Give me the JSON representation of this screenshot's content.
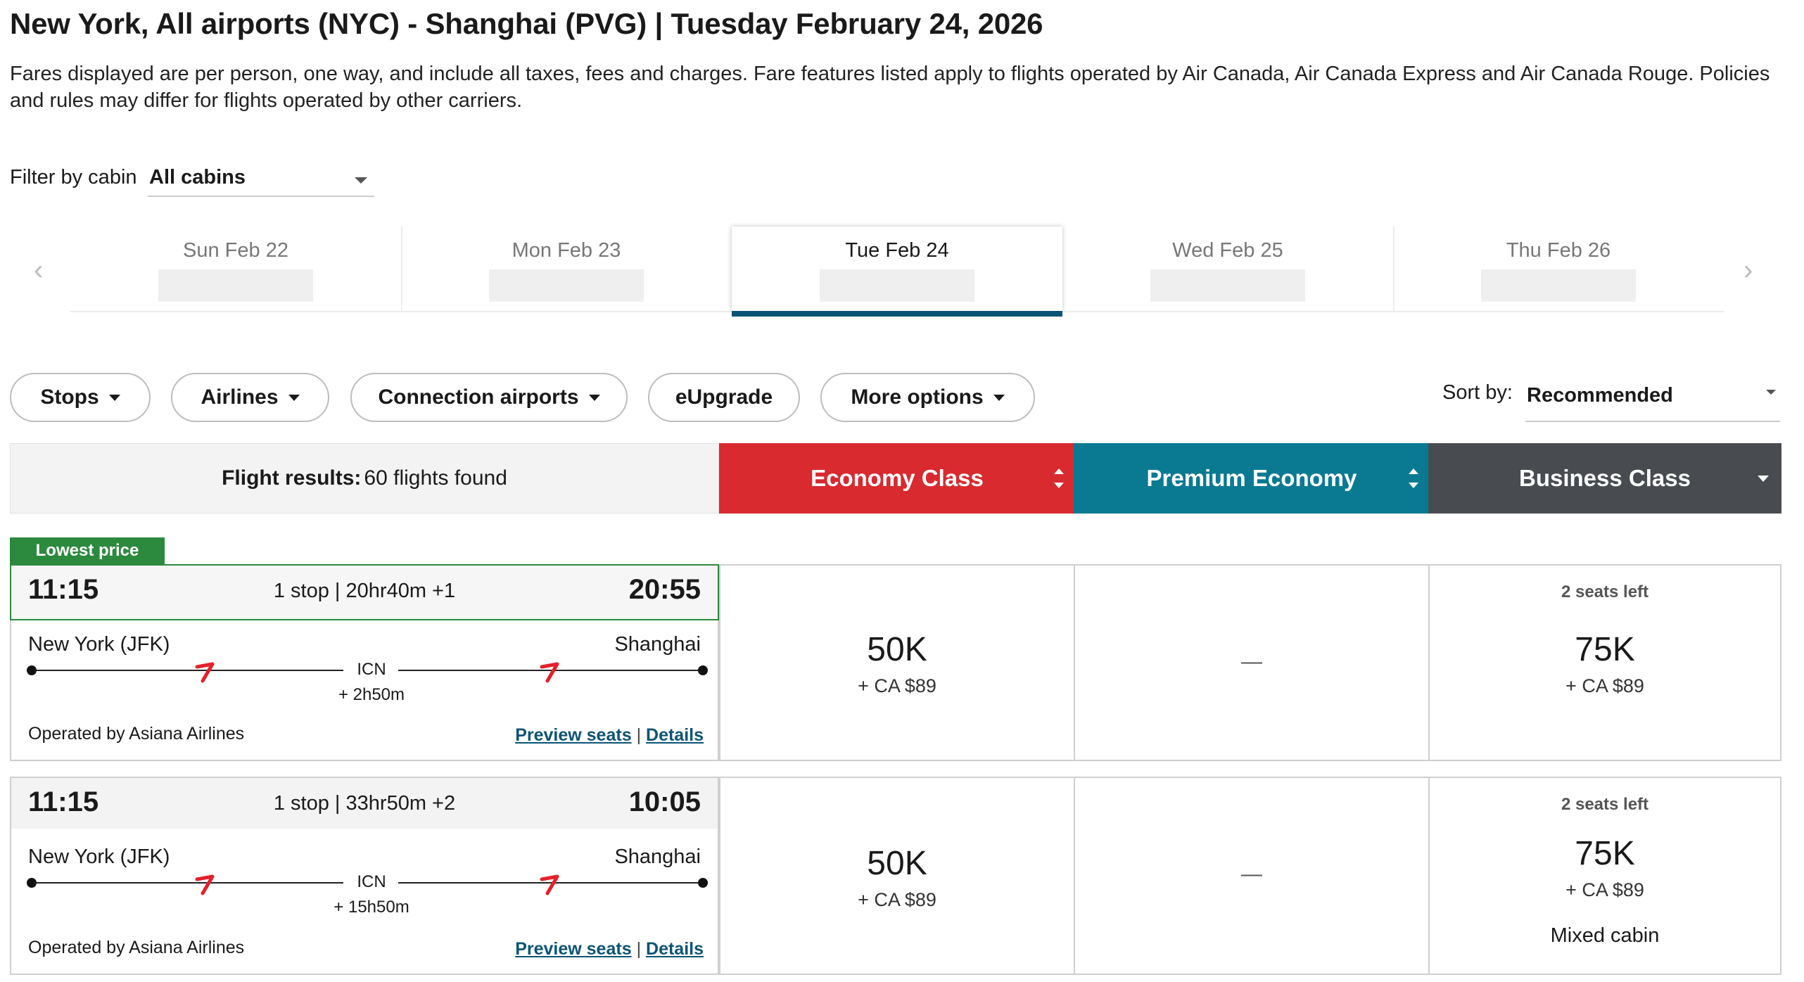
{
  "header": {
    "title": "New York, All airports (NYC) - Shanghai (PVG)  |  Tuesday February 24, 2026",
    "note": "Fares displayed are per person, one way, and include all taxes, fees and charges. Fare features listed apply to flights operated by Air Canada, Air Canada Express and Air Canada Rouge. Policies and rules may differ for flights operated by other carriers."
  },
  "filter": {
    "label": "Filter by cabin",
    "value": "All cabins"
  },
  "dates": [
    {
      "label": "Sun Feb 22"
    },
    {
      "label": "Mon Feb 23"
    },
    {
      "label": "Tue Feb 24",
      "active": true
    },
    {
      "label": "Wed Feb 25"
    },
    {
      "label": "Thu Feb 26"
    }
  ],
  "nav": {
    "prev": "‹",
    "next": "›"
  },
  "pills": [
    "Stops",
    "Airlines",
    "Connection airports",
    "eUpgrade",
    "More options"
  ],
  "sort": {
    "label": "Sort by:",
    "value": "Recommended"
  },
  "results": {
    "label": "Flight results:",
    "count": "60 flights found"
  },
  "cabins": [
    {
      "name": "Economy Class",
      "color": "#d82a2f"
    },
    {
      "name": "Premium Economy",
      "color": "#0a7a93"
    },
    {
      "name": "Business Class",
      "color": "#484c51"
    }
  ],
  "badge": "Lowest price",
  "flights": [
    {
      "dep": "11:15",
      "arr": "20:55",
      "info": "1 stop | 20hr40m +1",
      "from": "New York (JFK)",
      "to": "Shanghai",
      "hub": "ICN",
      "layover": "+ 2h50m",
      "operated": "Operated by Asiana Airlines",
      "preview": "Preview seats",
      "sep": "|",
      "details": "Details",
      "economy": {
        "points": "50K",
        "cash": "+ CA $89"
      },
      "premium": {
        "dash": "—"
      },
      "business": {
        "seats": "2 seats left",
        "points": "75K",
        "cash": "+ CA $89"
      }
    },
    {
      "dep": "11:15",
      "arr": "10:05",
      "info": "1 stop | 33hr50m +2",
      "from": "New York (JFK)",
      "to": "Shanghai",
      "hub": "ICN",
      "layover": "+ 15h50m",
      "operated": "Operated by Asiana Airlines",
      "preview": "Preview seats",
      "sep": "|",
      "details": "Details",
      "economy": {
        "points": "50K",
        "cash": "+ CA $89"
      },
      "premium": {
        "dash": "—"
      },
      "business": {
        "seats": "2 seats left",
        "points": "75K",
        "cash": "+ CA $89",
        "note": "Mixed cabin"
      }
    }
  ]
}
